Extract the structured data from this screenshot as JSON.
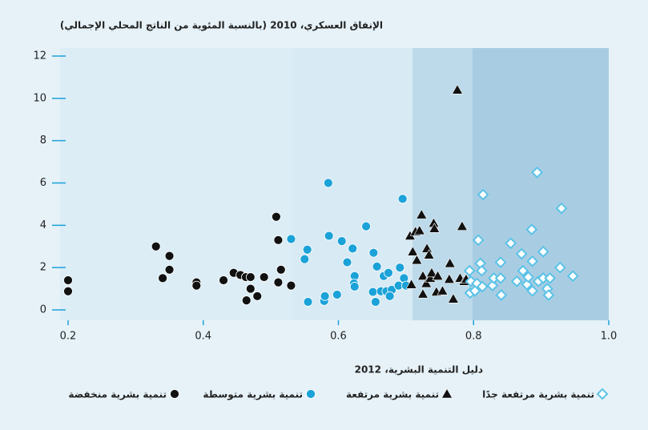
{
  "chart_data": {
    "type": "scatter",
    "title": "الإنفاق العسكري، 2010 (بالنسبة المئوية من الناتج المحلي الإجمالي)",
    "x_label": "دليل التنمية البشرية، 2012",
    "xlim": [
      0.2,
      1.0
    ],
    "xticks": [
      {
        "value": 0.2,
        "label": "0.2"
      },
      {
        "value": 0.4,
        "label": "0.4"
      },
      {
        "value": 0.6,
        "label": "0.6"
      },
      {
        "value": 0.8,
        "label": "0.8"
      },
      {
        "value": 1.0,
        "label": "1.0"
      }
    ],
    "ylim": [
      0,
      12
    ],
    "yticks": [
      0,
      2,
      4,
      6,
      8,
      10,
      12
    ],
    "series": [
      {
        "name": "تنمية بشرية منخفضة",
        "color": "#111111",
        "marker": "circle",
        "x": [
          0.2,
          0.2,
          0.33,
          0.34,
          0.35,
          0.35,
          0.39,
          0.39,
          0.43,
          0.445,
          0.455,
          0.463,
          0.47,
          0.464,
          0.47,
          0.48,
          0.49,
          0.508,
          0.511,
          0.515,
          0.511,
          0.53
        ],
        "values": [
          1.4,
          0.88,
          3.0,
          1.5,
          1.9,
          2.55,
          1.3,
          1.15,
          1.4,
          1.75,
          1.65,
          1.55,
          1.55,
          0.45,
          1.0,
          0.65,
          1.55,
          4.4,
          3.3,
          1.9,
          1.3,
          1.15
        ]
      },
      {
        "name": "تنمية بشرية متوسطة",
        "color": "#1ba2d8",
        "marker": "circle",
        "x": [
          0.53,
          0.55,
          0.554,
          0.555,
          0.579,
          0.58,
          0.585,
          0.586,
          0.598,
          0.605,
          0.613,
          0.621,
          0.624,
          0.623,
          0.624,
          0.641,
          0.652,
          0.651,
          0.655,
          0.657,
          0.667,
          0.674,
          0.663,
          0.671,
          0.679,
          0.676,
          0.689,
          0.691,
          0.695,
          0.697,
          0.7
        ],
        "values": [
          3.35,
          2.4,
          2.85,
          0.38,
          0.42,
          0.65,
          6.0,
          3.5,
          0.72,
          3.25,
          2.25,
          2.9,
          1.6,
          1.25,
          1.1,
          3.95,
          2.7,
          0.85,
          0.38,
          2.05,
          1.6,
          1.75,
          0.88,
          0.88,
          0.95,
          0.65,
          1.15,
          2.0,
          5.25,
          1.5,
          1.15
        ]
      },
      {
        "name": "تنمية بشرية مرتفعة",
        "color": "#111111",
        "marker": "triangle",
        "x": [
          0.708,
          0.706,
          0.714,
          0.72,
          0.71,
          0.716,
          0.723,
          0.725,
          0.725,
          0.73,
          0.731,
          0.734,
          0.736,
          0.738,
          0.741,
          0.742,
          0.745,
          0.747,
          0.754,
          0.765,
          0.764,
          0.77,
          0.776,
          0.78,
          0.783,
          0.786,
          0.789
        ],
        "values": [
          1.2,
          3.5,
          3.7,
          3.75,
          2.75,
          2.35,
          4.5,
          1.6,
          0.75,
          1.25,
          2.9,
          2.6,
          1.5,
          1.75,
          4.1,
          3.85,
          0.85,
          1.6,
          0.9,
          2.2,
          1.45,
          0.52,
          10.4,
          1.5,
          3.95,
          1.35,
          1.45
        ]
      },
      {
        "name": "تنمية بشرية مرتفعة جدًا",
        "color": "#5bc2e7",
        "marker": "diamond",
        "x": [
          0.794,
          0.796,
          0.795,
          0.802,
          0.805,
          0.807,
          0.81,
          0.812,
          0.813,
          0.814,
          0.828,
          0.83,
          0.84,
          0.84,
          0.841,
          0.855,
          0.864,
          0.871,
          0.873,
          0.879,
          0.881,
          0.886,
          0.887,
          0.887,
          0.894,
          0.896,
          0.903,
          0.903,
          0.909,
          0.911,
          0.913,
          0.928,
          0.93,
          0.947
        ],
        "values": [
          1.85,
          1.35,
          0.8,
          0.9,
          1.25,
          3.3,
          2.2,
          1.85,
          1.1,
          5.45,
          1.15,
          1.5,
          2.25,
          1.5,
          0.7,
          3.15,
          1.35,
          2.65,
          1.85,
          1.2,
          1.55,
          3.8,
          2.3,
          0.9,
          6.5,
          1.35,
          1.5,
          2.75,
          1.0,
          0.7,
          1.5,
          2.0,
          4.8,
          1.6
        ]
      }
    ]
  }
}
